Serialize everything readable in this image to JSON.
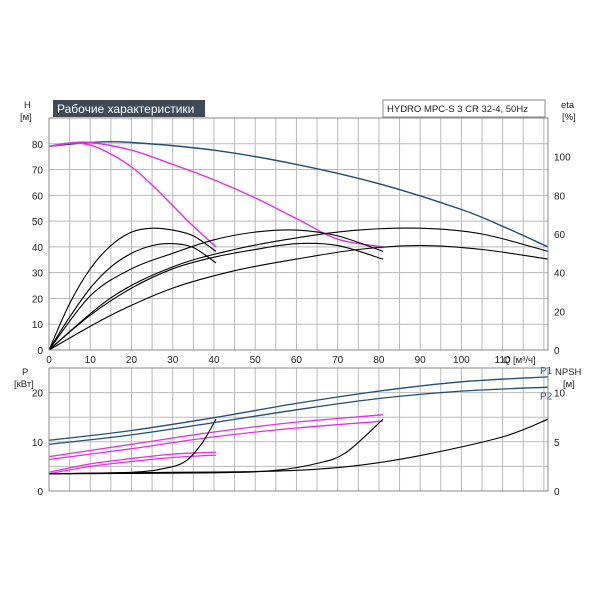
{
  "title": "Рабочие характеристики",
  "model": "HYDRO MPC-S 3 CR 32-4, 50Hz",
  "colors": {
    "blue": "#1f4e79",
    "magenta": "#e62ee6",
    "black": "#000000",
    "title_bg": "#3f4a57"
  },
  "chart_data": [
    {
      "type": "line",
      "x_axis": {
        "label": "Q [м³/ч]",
        "ticks": [
          0,
          10,
          20,
          30,
          40,
          50,
          60,
          70,
          80,
          90,
          100,
          110
        ],
        "range": [
          0,
          121
        ]
      },
      "y_axis_left": {
        "label_line1": "H",
        "label_line2": "[м]",
        "ticks": [
          0,
          10,
          20,
          30,
          40,
          50,
          60,
          70,
          80
        ],
        "range": [
          0,
          90
        ]
      },
      "y_axis_right": {
        "label_line1": "eta",
        "label_line2": "[%]",
        "ticks": [
          0,
          20,
          40,
          60,
          80,
          100
        ],
        "range": [
          0,
          120
        ]
      },
      "grid": true,
      "series": [
        {
          "group": "head",
          "color": "blue",
          "axis": "left",
          "points": [
            [
              0,
              79
            ],
            [
              10,
              80.5
            ],
            [
              20,
              80.5
            ],
            [
              40,
              77.5
            ],
            [
              60,
              72
            ],
            [
              80,
              64.5
            ],
            [
              100,
              54.5
            ],
            [
              110,
              48
            ],
            [
              121,
              40
            ]
          ]
        },
        {
          "group": "head",
          "color": "magenta",
          "axis": "left",
          "points": [
            [
              0,
              79
            ],
            [
              5,
              80.2
            ],
            [
              10,
              80.5
            ],
            [
              20,
              77.5
            ],
            [
              30,
              72
            ],
            [
              40,
              66
            ],
            [
              50,
              59
            ],
            [
              60,
              51
            ],
            [
              70,
              43
            ],
            [
              81,
              40
            ]
          ]
        },
        {
          "group": "head",
          "color": "magenta",
          "axis": "left",
          "points": [
            [
              0,
              79
            ],
            [
              5,
              80.3
            ],
            [
              10,
              79.5
            ],
            [
              15,
              76
            ],
            [
              20,
              71
            ],
            [
              25,
              64
            ],
            [
              30,
              56
            ],
            [
              35,
              48
            ],
            [
              40.5,
              40
            ]
          ]
        },
        {
          "group": "efficiency",
          "color": "black",
          "axis": "right",
          "points": [
            [
              0,
              0
            ],
            [
              5,
              17
            ],
            [
              10,
              32
            ],
            [
              15,
              43
            ],
            [
              20,
              50
            ],
            [
              25,
              54
            ],
            [
              30,
              55
            ],
            [
              35,
              53
            ],
            [
              40.5,
              45
            ]
          ]
        },
        {
          "group": "efficiency",
          "color": "black",
          "axis": "right",
          "points": [
            [
              0,
              0
            ],
            [
              10,
              18
            ],
            [
              20,
              32
            ],
            [
              30,
              42
            ],
            [
              40,
              48
            ],
            [
              50,
              52
            ],
            [
              60,
              55
            ],
            [
              70,
              54
            ],
            [
              81,
              47
            ]
          ]
        },
        {
          "group": "efficiency",
          "color": "black",
          "axis": "right",
          "points": [
            [
              0,
              0
            ],
            [
              15,
              18
            ],
            [
              30,
              32
            ],
            [
              45,
              41
            ],
            [
              60,
              47
            ],
            [
              75,
              52
            ],
            [
              90,
              54
            ],
            [
              105,
              52
            ],
            [
              121,
              47
            ]
          ]
        },
        {
          "group": "efficiency",
          "color": "black",
          "axis": "right",
          "points": [
            [
              0,
              0
            ],
            [
              5,
              24
            ],
            [
              10,
              42
            ],
            [
              15,
              54
            ],
            [
              20,
              61
            ],
            [
              25,
              63
            ],
            [
              30,
              62
            ],
            [
              35,
              59
            ],
            [
              40.5,
              51
            ]
          ]
        },
        {
          "group": "efficiency",
          "color": "black",
          "axis": "right",
          "points": [
            [
              0,
              0
            ],
            [
              10,
              28
            ],
            [
              20,
              42
            ],
            [
              30,
              50
            ],
            [
              40,
              57
            ],
            [
              50,
              61
            ],
            [
              60,
              62
            ],
            [
              70,
              59
            ],
            [
              81,
              51
            ]
          ]
        },
        {
          "group": "efficiency",
          "color": "black",
          "axis": "right",
          "points": [
            [
              0,
              0
            ],
            [
              15,
              27
            ],
            [
              30,
              43
            ],
            [
              45,
              52
            ],
            [
              60,
              58
            ],
            [
              75,
              62
            ],
            [
              90,
              63
            ],
            [
              105,
              60
            ],
            [
              121,
              51
            ]
          ]
        }
      ]
    },
    {
      "type": "line",
      "x_axis": {
        "range": [
          0,
          121
        ]
      },
      "y_axis_left": {
        "label_line1": "P",
        "label_line2": "[кВт]",
        "ticks": [
          0,
          10,
          20
        ],
        "range": [
          0,
          25
        ]
      },
      "y_axis_right": {
        "label_line1": "NPSH",
        "label_line2": "[м]",
        "ticks": [
          0,
          5,
          10
        ],
        "range": [
          0,
          12.5
        ]
      },
      "grid": true,
      "series_labels": [
        {
          "name": "P1",
          "color": "blue",
          "x": 121,
          "y": 23.2
        },
        {
          "name": "P2",
          "color": "blue",
          "x": 121,
          "y": 21
        }
      ],
      "series": [
        {
          "group": "P1",
          "color": "blue",
          "axis": "left",
          "points": [
            [
              0,
              10.3
            ],
            [
              20,
              12.3
            ],
            [
              40,
              14.9
            ],
            [
              60,
              17.8
            ],
            [
              80,
              20.3
            ],
            [
              100,
              22.2
            ],
            [
              121,
              23.2
            ]
          ]
        },
        {
          "group": "P2",
          "color": "blue",
          "axis": "left",
          "points": [
            [
              0,
              9.5
            ],
            [
              20,
              11.4
            ],
            [
              40,
              13.9
            ],
            [
              60,
              16.5
            ],
            [
              80,
              18.8
            ],
            [
              100,
              20.3
            ],
            [
              121,
              21.1
            ]
          ]
        },
        {
          "group": "P1",
          "color": "magenta",
          "axis": "left",
          "points": [
            [
              0,
              7.0
            ],
            [
              20,
              9.5
            ],
            [
              40,
              12.0
            ],
            [
              60,
              14.0
            ],
            [
              81,
              15.5
            ]
          ]
        },
        {
          "group": "P2",
          "color": "magenta",
          "axis": "left",
          "points": [
            [
              0,
              6.4
            ],
            [
              20,
              8.6
            ],
            [
              40,
              11.0
            ],
            [
              60,
              12.8
            ],
            [
              81,
              14.2
            ]
          ]
        },
        {
          "group": "P1",
          "color": "magenta",
          "axis": "left",
          "points": [
            [
              0,
              3.8
            ],
            [
              10,
              5.5
            ],
            [
              20,
              6.6
            ],
            [
              30,
              7.5
            ],
            [
              40.5,
              7.9
            ]
          ]
        },
        {
          "group": "P2",
          "color": "magenta",
          "axis": "left",
          "points": [
            [
              0,
              3.5
            ],
            [
              10,
              5.0
            ],
            [
              20,
              6.0
            ],
            [
              30,
              6.8
            ],
            [
              40.5,
              7.3
            ]
          ]
        },
        {
          "group": "NPSH",
          "color": "black",
          "axis": "right",
          "points": [
            [
              0,
              1.75
            ],
            [
              30,
              1.9
            ],
            [
              45,
              1.95
            ],
            [
              60,
              2.1
            ],
            [
              75,
              2.6
            ],
            [
              90,
              3.6
            ],
            [
              110,
              5.5
            ],
            [
              121,
              7.3
            ]
          ]
        },
        {
          "group": "NPSH",
          "color": "black",
          "axis": "right",
          "points": [
            [
              0,
              1.75
            ],
            [
              40,
              1.85
            ],
            [
              55,
              2.1
            ],
            [
              65,
              2.8
            ],
            [
              72,
              3.9
            ],
            [
              81,
              7.3
            ]
          ]
        },
        {
          "group": "NPSH",
          "color": "black",
          "axis": "right",
          "points": [
            [
              0,
              1.75
            ],
            [
              20,
              1.9
            ],
            [
              28,
              2.3
            ],
            [
              33,
              3.0
            ],
            [
              37,
              4.8
            ],
            [
              40.5,
              7.3
            ]
          ]
        }
      ]
    }
  ]
}
